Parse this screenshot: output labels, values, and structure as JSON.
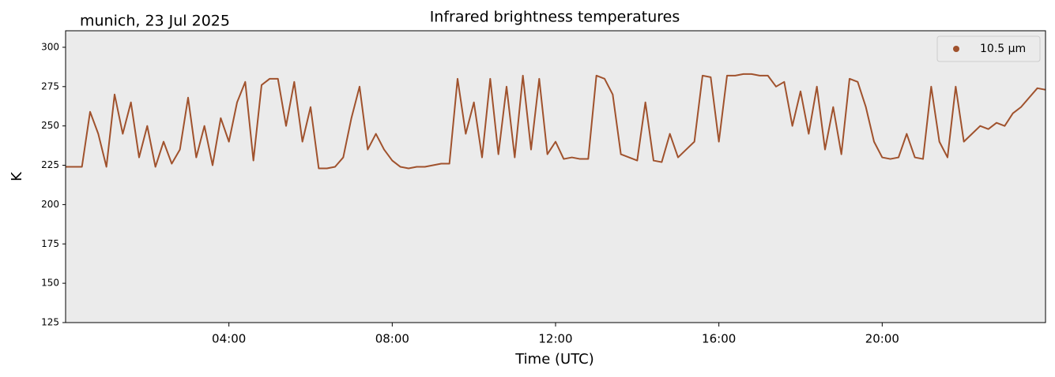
{
  "chart_data": {
    "type": "line",
    "title": "Infrared brightness temperatures",
    "annotation": "munich, 23 Jul 2025",
    "xlabel": "Time (UTC)",
    "ylabel": "K",
    "xlim": [
      0,
      24
    ],
    "ylim": [
      125,
      310.5
    ],
    "xticks": [
      {
        "value": 4,
        "label": "04:00"
      },
      {
        "value": 8,
        "label": "08:00"
      },
      {
        "value": 12,
        "label": "12:00"
      },
      {
        "value": 16,
        "label": "16:00"
      },
      {
        "value": 20,
        "label": "20:00"
      }
    ],
    "yticks": [
      125,
      150,
      175,
      200,
      225,
      250,
      275,
      300
    ],
    "legend": "upper right",
    "x": [
      0,
      0.2,
      0.4,
      0.6,
      0.8,
      1,
      1.2,
      1.4,
      1.6,
      1.8,
      2,
      2.2,
      2.4,
      2.6,
      2.8,
      3,
      3.2,
      3.4,
      3.6,
      3.8,
      4,
      4.2,
      4.4,
      4.6,
      4.8,
      5,
      5.2,
      5.4,
      5.6,
      5.8,
      6,
      6.2,
      6.4,
      6.6,
      6.8,
      7,
      7.2,
      7.4,
      7.6,
      7.8,
      8,
      8.2,
      8.4,
      8.6,
      8.8,
      9,
      9.2,
      9.4,
      9.6,
      9.8,
      10,
      10.2,
      10.4,
      10.6,
      10.8,
      11,
      11.2,
      11.4,
      11.6,
      11.8,
      12,
      12.2,
      12.4,
      12.6,
      12.8,
      13,
      13.2,
      13.4,
      13.6,
      13.8,
      14,
      14.2,
      14.4,
      14.6,
      14.8,
      15,
      15.2,
      15.4,
      15.6,
      15.8,
      16,
      16.2,
      16.4,
      16.6,
      16.8,
      17,
      17.2,
      17.4,
      17.6,
      17.8,
      18,
      18.2,
      18.4,
      18.6,
      18.8,
      19,
      19.2,
      19.4,
      19.6,
      19.8,
      20,
      20.2,
      20.4,
      20.6,
      20.8,
      21,
      21.2,
      21.4,
      21.6,
      21.8,
      22,
      22.2,
      22.4,
      22.6,
      22.8,
      23,
      23.2,
      23.4,
      23.6,
      23.8,
      24
    ],
    "series": [
      {
        "name": "10.5 µm",
        "color": "#a0522d",
        "values": [
          224,
          224,
          224,
          259,
          245,
          224,
          270,
          245,
          265,
          230,
          250,
          224,
          240,
          226,
          235,
          268,
          230,
          250,
          225,
          255,
          240,
          265,
          278,
          228,
          276,
          280,
          280,
          250,
          278,
          240,
          262,
          223,
          223,
          224,
          230,
          255,
          275,
          235,
          245,
          235,
          228,
          224,
          223,
          224,
          224,
          225,
          226,
          226,
          280,
          245,
          265,
          230,
          280,
          232,
          275,
          230,
          282,
          235,
          280,
          232,
          240,
          229,
          230,
          229,
          229,
          282,
          280,
          270,
          232,
          230,
          228,
          265,
          228,
          227,
          245,
          230,
          235,
          240,
          282,
          281,
          240,
          282,
          282,
          283,
          283,
          282,
          282,
          275,
          278,
          250,
          272,
          245,
          275,
          235,
          262,
          232,
          280,
          278,
          262,
          240,
          230,
          229,
          230,
          245,
          230,
          229,
          275,
          240,
          230,
          275,
          240,
          245,
          250,
          248,
          252,
          250,
          258,
          262,
          268,
          274,
          273
        ]
      }
    ]
  }
}
